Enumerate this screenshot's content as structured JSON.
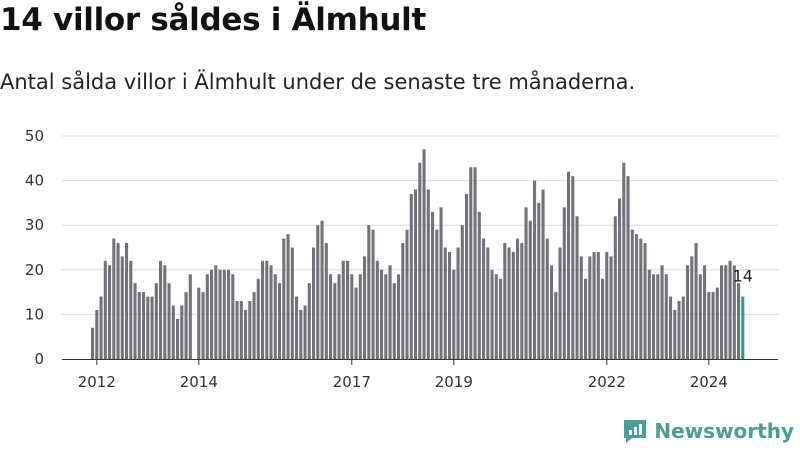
{
  "page": {
    "title": "14 villor såldes i Älmhult",
    "subtitle": "Antal sålda villor i Älmhult under de senaste tre månaderna."
  },
  "brand": {
    "name": "Newsworthy",
    "icon": "newsworthy-logo-icon",
    "color": "#4a9d98"
  },
  "chart_data": {
    "type": "bar",
    "title": "14 villor såldes i Älmhult",
    "subtitle": "Antal sålda villor i Älmhult under de senaste tre månaderna.",
    "xlabel": "",
    "ylabel": "",
    "ylim": [
      0,
      50
    ],
    "yticks": [
      0,
      10,
      20,
      30,
      40,
      50
    ],
    "xtick_labels": [
      "2012",
      "2014",
      "2017",
      "2019",
      "2022",
      "2024"
    ],
    "grid": true,
    "colors": {
      "bar": "#737278",
      "highlight": "#2a9d96",
      "grid": "#dddddd",
      "axis": "#333333"
    },
    "start": "2011-12",
    "values": [
      7,
      11,
      14,
      22,
      21,
      27,
      26,
      23,
      26,
      22,
      17,
      15,
      15,
      14,
      14,
      17,
      22,
      21,
      17,
      12,
      9,
      12,
      15,
      19,
      0,
      16,
      15,
      19,
      20,
      21,
      20,
      20,
      20,
      19,
      13,
      13,
      11,
      13,
      15,
      18,
      22,
      22,
      21,
      19,
      17,
      27,
      28,
      25,
      14,
      11,
      12,
      17,
      25,
      30,
      31,
      26,
      19,
      17,
      19,
      22,
      22,
      19,
      16,
      19,
      23,
      30,
      29,
      22,
      20,
      19,
      21,
      17,
      19,
      26,
      29,
      37,
      38,
      44,
      47,
      38,
      33,
      29,
      34,
      25,
      24,
      20,
      25,
      30,
      37,
      43,
      43,
      33,
      27,
      25,
      20,
      19,
      18,
      26,
      25,
      24,
      27,
      26,
      34,
      31,
      40,
      35,
      38,
      27,
      21,
      15,
      25,
      34,
      42,
      41,
      32,
      23,
      18,
      23,
      24,
      24,
      18,
      24,
      23,
      32,
      36,
      44,
      41,
      29,
      28,
      27,
      26,
      20,
      19,
      19,
      21,
      19,
      14,
      11,
      13,
      14,
      21,
      23,
      26,
      19,
      21,
      15,
      15,
      16,
      21,
      21,
      22,
      21,
      17,
      14
    ],
    "highlight": {
      "index": 153,
      "value": 14,
      "label": "14"
    }
  }
}
